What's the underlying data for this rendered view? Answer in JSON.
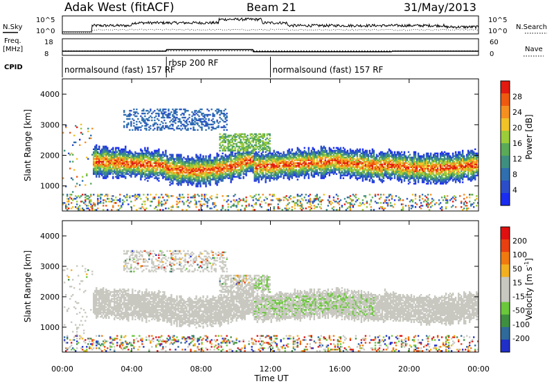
{
  "header": {
    "station": "Adak West (fitACF)",
    "beam": "Beam 21",
    "date": "31/May/2013"
  },
  "top_panels": {
    "nsky_label": "N.Sky",
    "nsearch_label": "N.Search",
    "freq_label_1": "Freq.",
    "freq_label_2": "[MHz]",
    "nave_label": "Nave",
    "cpid_label": "CPID",
    "nsky_ticks": [
      "10^5",
      "10^0"
    ],
    "nsearch_ticks": [
      "10^5",
      "10^0"
    ],
    "freq_ticks": [
      "18",
      "8"
    ],
    "nave_ticks": [
      "60",
      "0"
    ],
    "cpid_segments": [
      {
        "label": "normalsound (fast) 157 RF",
        "start_h": 0,
        "end_h": 6
      },
      {
        "label": "rbsp 200 RF",
        "start_h": 6,
        "end_h": 12
      },
      {
        "label": "normalsound (fast) 157 RF",
        "start_h": 12,
        "end_h": 24
      }
    ],
    "frequency_steps_mhz": [
      {
        "start_h": 0,
        "end_h": 6,
        "value": 10.5
      },
      {
        "start_h": 6,
        "end_h": 11,
        "value": 11.5
      },
      {
        "start_h": 11,
        "end_h": 19,
        "value": 10.2
      },
      {
        "start_h": 19,
        "end_h": 24,
        "value": 10.5
      }
    ]
  },
  "chart_data": [
    {
      "type": "heatmap",
      "name": "power",
      "ylabel": "Slant Range [km]",
      "xlabel": "Time UT",
      "xlim_h": [
        0,
        24
      ],
      "ylim_km": [
        180,
        4500
      ],
      "y_ticks": [
        "1000",
        "2000",
        "3000",
        "4000"
      ],
      "x_ticks": [
        "00:00",
        "04:00",
        "08:00",
        "12:00",
        "16:00",
        "20:00",
        "00:00"
      ],
      "colorbar_title": "Power [dB]",
      "colorbar_ticks": [
        "28",
        "24",
        "20",
        "16",
        "12",
        "8",
        "4"
      ],
      "colors": [
        "#1a2cf0",
        "#2b4ec8",
        "#2f6fb0",
        "#3f8f80",
        "#5aaa58",
        "#9bcc3a",
        "#f0c228",
        "#f59020",
        "#ef5a10",
        "#e21a10"
      ]
    },
    {
      "type": "heatmap",
      "name": "velocity",
      "ylabel": "Slant Range [km]",
      "xlabel": "Time UT",
      "xlim_h": [
        0,
        24
      ],
      "ylim_km": [
        180,
        4500
      ],
      "y_ticks": [
        "1000",
        "2000",
        "3000",
        "4000"
      ],
      "x_ticks": [
        "00:00",
        "04:00",
        "08:00",
        "12:00",
        "16:00",
        "20:00",
        "00:00"
      ],
      "colorbar_title": "Velocity [m s",
      "colorbar_ticks": [
        "200",
        "100",
        "50",
        "15",
        "-15",
        "-50",
        "-100",
        "-200"
      ],
      "colors": [
        "#1f2fc8",
        "#2f6a9a",
        "#3f8f40",
        "#6ac83a",
        "#c8c8c0",
        "#c8c8c0",
        "#f2b020",
        "#f07a10",
        "#e84010",
        "#e01010"
      ]
    }
  ],
  "x_axis_title": "Time UT"
}
